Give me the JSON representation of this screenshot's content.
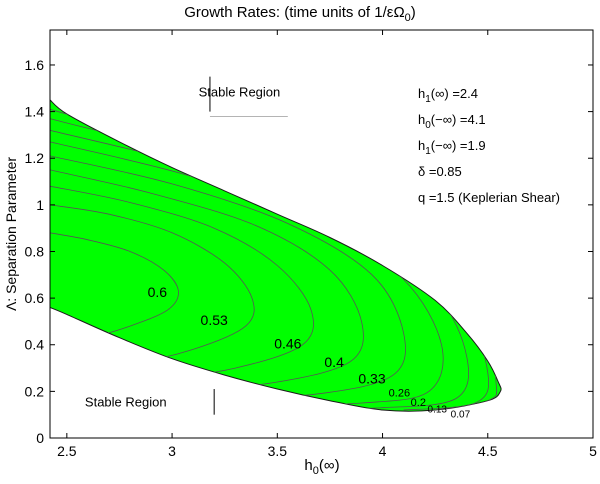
{
  "chart_data": {
    "type": "contour",
    "title": "Growth Rates: (time units of 1/εΩ",
    "title_sub": "0",
    "title_end": ")",
    "xlabel": "h",
    "xlabel_sub": "0",
    "xlabel_end": "(∞)",
    "ylabel": "Λ: Separation Parameter",
    "xlim": [
      2.42,
      5
    ],
    "ylim": [
      0,
      1.75
    ],
    "xticks": [
      "2.5",
      "3",
      "3.5",
      "4",
      "4.5",
      "5"
    ],
    "xtick_values": [
      2.5,
      3,
      3.5,
      4,
      4.5,
      5
    ],
    "yticks": [
      "0",
      "0.2",
      "0.4",
      "0.6",
      "0.8",
      "1",
      "1.2",
      "1.4",
      "1.6"
    ],
    "ytick_values": [
      0,
      0.2,
      0.4,
      0.6,
      0.8,
      1,
      1.2,
      1.4,
      1.6
    ],
    "fill_color": "#00ff00",
    "contour_color": "#555555",
    "unstable_region": {
      "upper_boundary": [
        [
          2.42,
          1.45
        ],
        [
          2.5,
          1.39
        ],
        [
          2.75,
          1.27
        ],
        [
          3.0,
          1.16
        ],
        [
          3.25,
          1.06
        ],
        [
          3.5,
          0.96
        ],
        [
          3.75,
          0.86
        ],
        [
          4.0,
          0.74
        ],
        [
          4.25,
          0.59
        ],
        [
          4.4,
          0.45
        ],
        [
          4.5,
          0.33
        ],
        [
          4.55,
          0.24
        ],
        [
          4.56,
          0.2
        ]
      ],
      "lower_boundary": [
        [
          4.56,
          0.2
        ],
        [
          4.5,
          0.16
        ],
        [
          4.25,
          0.12
        ],
        [
          4.0,
          0.12
        ],
        [
          3.75,
          0.16
        ],
        [
          3.5,
          0.21
        ],
        [
          3.25,
          0.27
        ],
        [
          3.0,
          0.34
        ],
        [
          2.75,
          0.43
        ],
        [
          2.5,
          0.53
        ],
        [
          2.42,
          0.56
        ]
      ]
    },
    "contour_levels": [
      {
        "label": "0.6",
        "label_at": [
          2.93,
          0.62
        ],
        "line": [
          [
            2.42,
            0.88
          ],
          [
            2.6,
            0.85
          ],
          [
            2.8,
            0.8
          ],
          [
            2.96,
            0.72
          ],
          [
            3.03,
            0.63
          ],
          [
            2.98,
            0.55
          ],
          [
            2.8,
            0.48
          ],
          [
            2.6,
            0.43
          ],
          [
            2.42,
            0.42
          ]
        ]
      },
      {
        "label": "0.53",
        "label_at": [
          3.2,
          0.5
        ],
        "line": [
          [
            2.42,
            1.0
          ],
          [
            2.7,
            0.96
          ],
          [
            3.0,
            0.88
          ],
          [
            3.25,
            0.75
          ],
          [
            3.38,
            0.6
          ],
          [
            3.35,
            0.48
          ],
          [
            3.1,
            0.38
          ],
          [
            2.8,
            0.32
          ],
          [
            2.42,
            0.3
          ]
        ]
      },
      {
        "label": "0.46",
        "label_at": [
          3.55,
          0.4
        ],
        "line": [
          [
            2.42,
            1.08
          ],
          [
            2.8,
            1.01
          ],
          [
            3.2,
            0.9
          ],
          [
            3.5,
            0.74
          ],
          [
            3.66,
            0.55
          ],
          [
            3.62,
            0.4
          ],
          [
            3.3,
            0.3
          ],
          [
            2.9,
            0.25
          ],
          [
            2.42,
            0.22
          ]
        ]
      },
      {
        "label": "0.4",
        "label_at": [
          3.77,
          0.32
        ],
        "line": [
          [
            2.42,
            1.15
          ],
          [
            2.9,
            1.05
          ],
          [
            3.4,
            0.91
          ],
          [
            3.75,
            0.72
          ],
          [
            3.9,
            0.5
          ],
          [
            3.85,
            0.33
          ],
          [
            3.5,
            0.24
          ],
          [
            3.0,
            0.2
          ],
          [
            2.42,
            0.18
          ]
        ]
      },
      {
        "label": "0.33",
        "label_at": [
          3.95,
          0.25
        ],
        "line": [
          [
            2.42,
            1.21
          ],
          [
            3.0,
            1.09
          ],
          [
            3.55,
            0.92
          ],
          [
            3.95,
            0.7
          ],
          [
            4.1,
            0.45
          ],
          [
            4.05,
            0.27
          ],
          [
            3.7,
            0.19
          ],
          [
            3.2,
            0.17
          ],
          [
            2.42,
            0.15
          ]
        ]
      },
      {
        "label": "0.26",
        "label_at": [
          4.08,
          0.19
        ],
        "line": [
          [
            2.42,
            1.27
          ],
          [
            3.1,
            1.12
          ],
          [
            3.7,
            0.92
          ],
          [
            4.1,
            0.68
          ],
          [
            4.28,
            0.4
          ],
          [
            4.22,
            0.2
          ],
          [
            3.9,
            0.15
          ],
          [
            3.4,
            0.14
          ]
        ]
      },
      {
        "label": "0.2",
        "label_at": [
          4.17,
          0.15
        ],
        "line": [
          [
            2.42,
            1.32
          ],
          [
            3.2,
            1.14
          ],
          [
            3.85,
            0.9
          ],
          [
            4.25,
            0.62
          ],
          [
            4.4,
            0.35
          ],
          [
            4.35,
            0.17
          ],
          [
            4.0,
            0.13
          ],
          [
            3.6,
            0.13
          ]
        ]
      },
      {
        "label": "0.13",
        "label_at": [
          4.26,
          0.12
        ],
        "line": [
          [
            2.42,
            1.37
          ],
          [
            3.3,
            1.15
          ],
          [
            4.0,
            0.85
          ],
          [
            4.38,
            0.54
          ],
          [
            4.5,
            0.28
          ],
          [
            4.44,
            0.15
          ],
          [
            4.1,
            0.12
          ]
        ]
      },
      {
        "label": "0.07",
        "label_at": [
          4.37,
          0.1
        ],
        "line": [
          [
            2.42,
            1.41
          ],
          [
            3.4,
            1.14
          ],
          [
            4.12,
            0.78
          ],
          [
            4.47,
            0.45
          ],
          [
            4.54,
            0.23
          ],
          [
            4.5,
            0.16
          ],
          [
            4.25,
            0.12
          ]
        ]
      }
    ],
    "annotations": [
      {
        "text": "Stable Region",
        "at": [
          3.32,
          1.48
        ],
        "tick_x": 3.18,
        "tick_y": [
          1.4,
          1.55
        ]
      },
      {
        "text": "Stable Region",
        "at": [
          2.78,
          0.15
        ],
        "tick_x": 3.2,
        "tick_y": [
          0.1,
          0.21
        ]
      }
    ],
    "legend_text": [
      {
        "main": "h",
        "sub": "1",
        "rest": "(∞) =2.4"
      },
      {
        "main": "h",
        "sub": "0",
        "rest": "(−∞) =4.1"
      },
      {
        "main": "h",
        "sub": "1",
        "rest": "(−∞) =1.9"
      },
      {
        "main": "δ =0.85",
        "sub": "",
        "rest": ""
      },
      {
        "main": "q =1.5 (Keplerian Shear)",
        "sub": "",
        "rest": ""
      }
    ]
  }
}
